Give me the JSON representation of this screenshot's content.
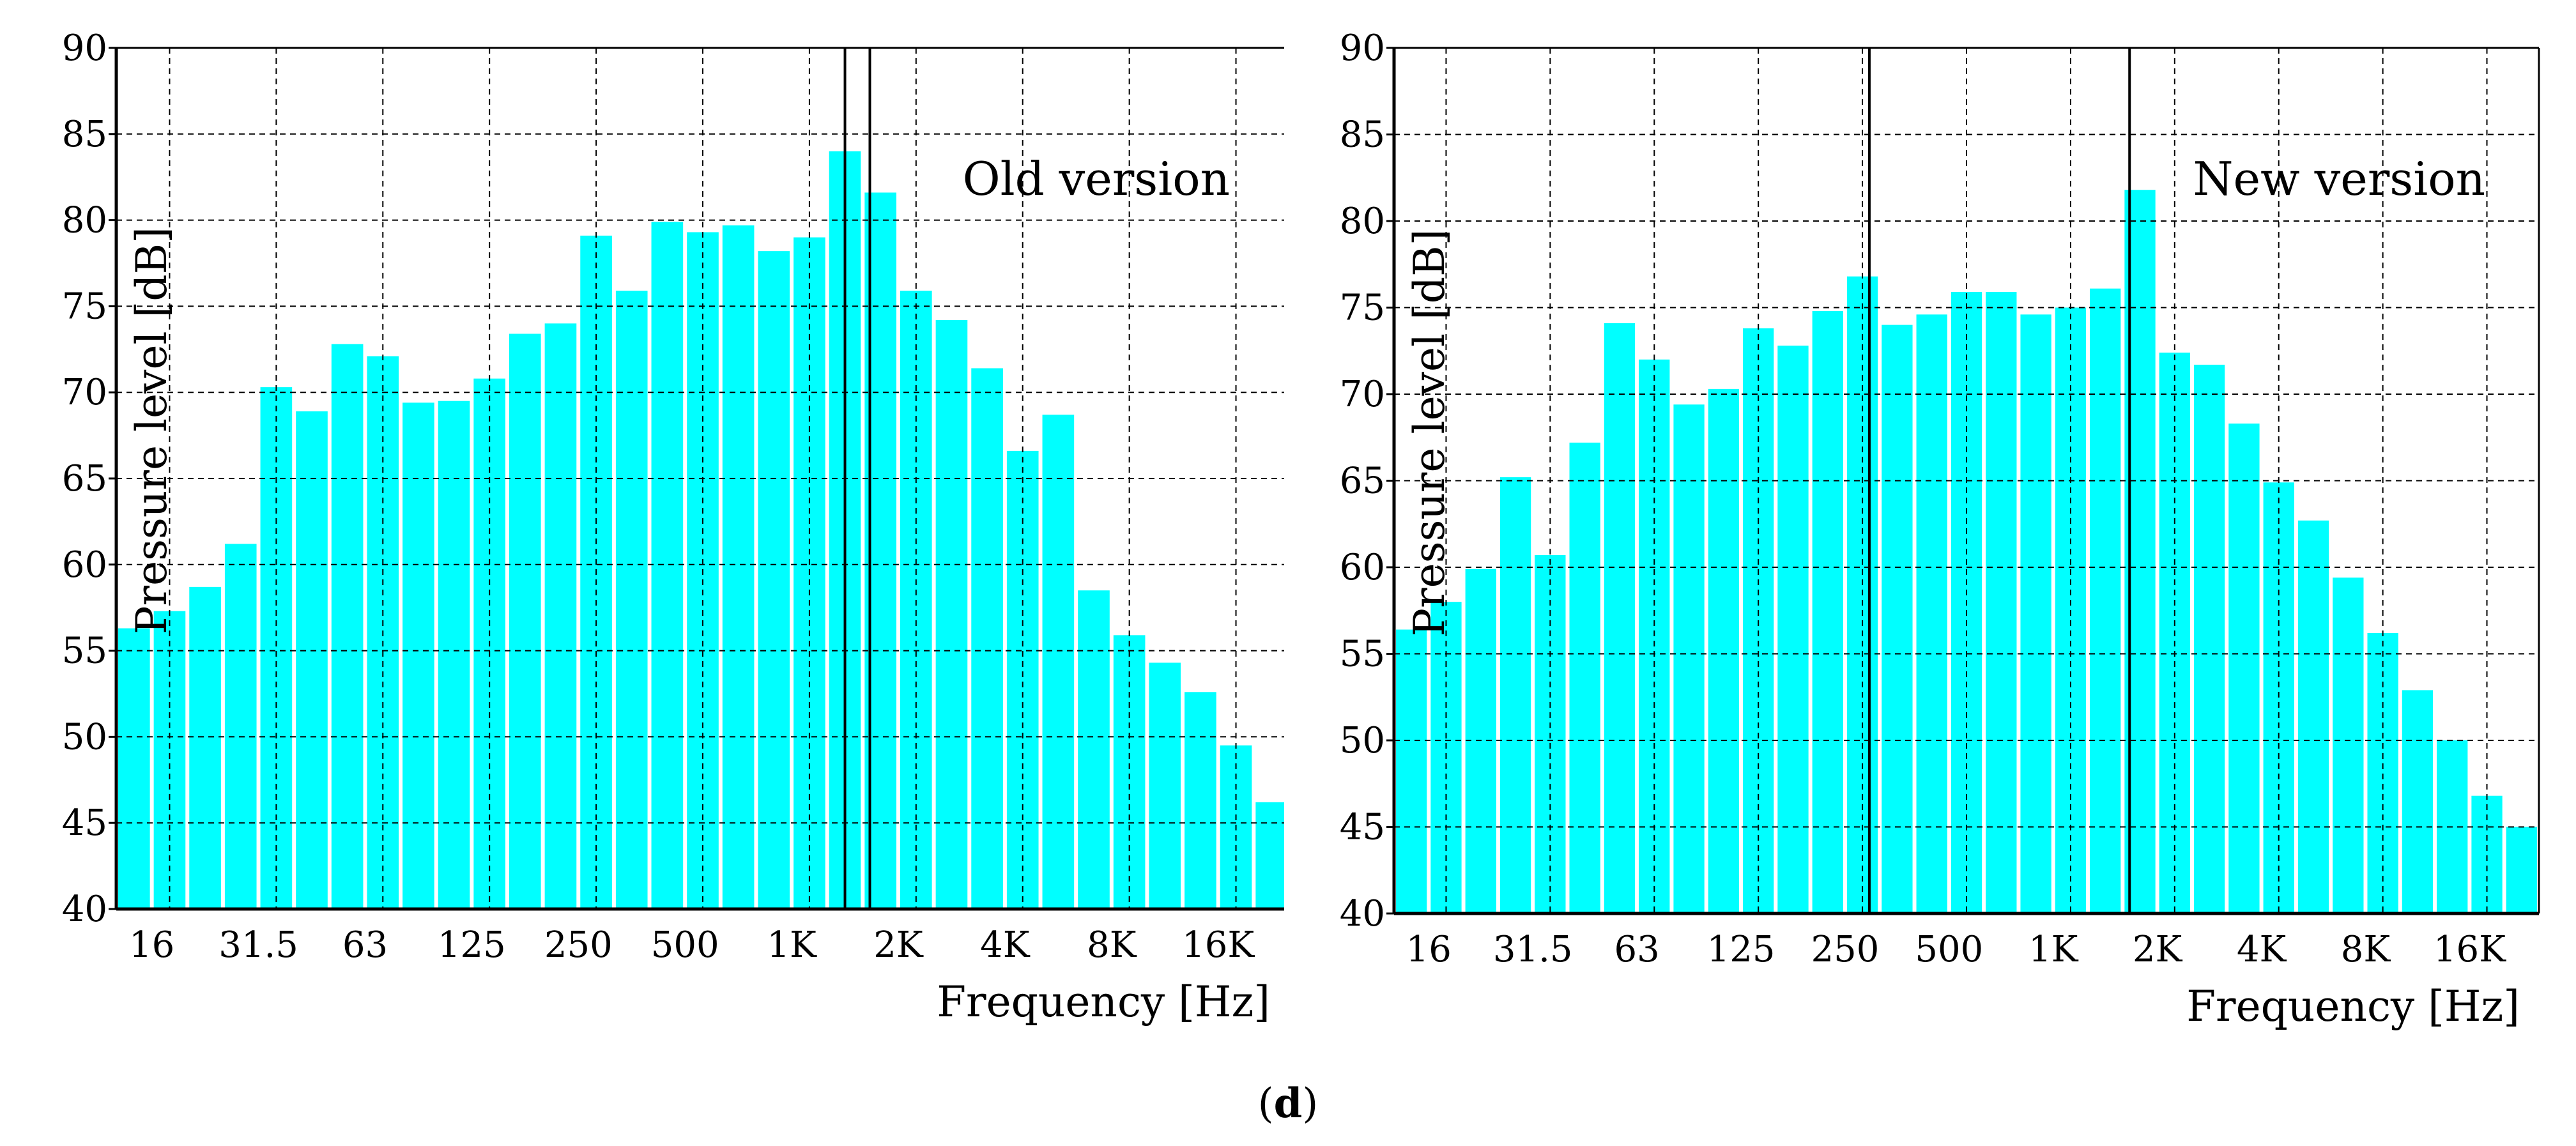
{
  "chart_data": [
    {
      "type": "bar",
      "annotation": "Old version",
      "xlabel": "Frequency [Hz]",
      "ylabel": "Pressure level [dB]",
      "ylim": [
        40,
        90
      ],
      "yticks": [
        40,
        45,
        50,
        55,
        60,
        65,
        70,
        75,
        80,
        85,
        90
      ],
      "grid": true,
      "bar_color": "#00ffff",
      "x_tick_labels": [
        "16",
        "31.5",
        "63",
        "125",
        "250",
        "500",
        "1K",
        "2K",
        "4K",
        "8K",
        "16K"
      ],
      "values": [
        56.3,
        57.3,
        58.7,
        61.2,
        70.3,
        68.9,
        72.8,
        72.1,
        69.4,
        69.5,
        70.8,
        73.4,
        74.0,
        79.1,
        75.9,
        79.9,
        79.3,
        79.7,
        78.2,
        79.0,
        84.0,
        81.6,
        75.9,
        74.2,
        71.4,
        66.6,
        68.7,
        58.5,
        55.9,
        54.3,
        52.6,
        49.5,
        46.2
      ],
      "marker_lines_bar_index": [
        20.5,
        21.2
      ]
    },
    {
      "type": "bar",
      "annotation": "New version",
      "xlabel": "Frequency [Hz]",
      "ylabel": "Pressure level [dB]",
      "ylim": [
        40,
        90
      ],
      "yticks": [
        40,
        45,
        50,
        55,
        60,
        65,
        70,
        75,
        80,
        85,
        90
      ],
      "grid": true,
      "bar_color": "#00ffff",
      "x_tick_labels": [
        "16",
        "31.5",
        "63",
        "125",
        "250",
        "500",
        "1K",
        "2K",
        "4K",
        "8K",
        "16K"
      ],
      "values": [
        56.4,
        58.0,
        59.9,
        65.2,
        60.7,
        67.2,
        74.1,
        72.0,
        69.4,
        70.3,
        73.8,
        72.8,
        74.8,
        76.8,
        74.0,
        74.6,
        75.9,
        75.9,
        74.6,
        75.0,
        76.1,
        81.8,
        72.4,
        71.7,
        68.3,
        64.9,
        62.7,
        59.4,
        56.2,
        52.9,
        50.0,
        46.8,
        45.0
      ],
      "marker_lines_bar_index": [
        13.7,
        21.2
      ]
    }
  ],
  "caption": {
    "open": "(",
    "letter": "d",
    "close": ")"
  }
}
